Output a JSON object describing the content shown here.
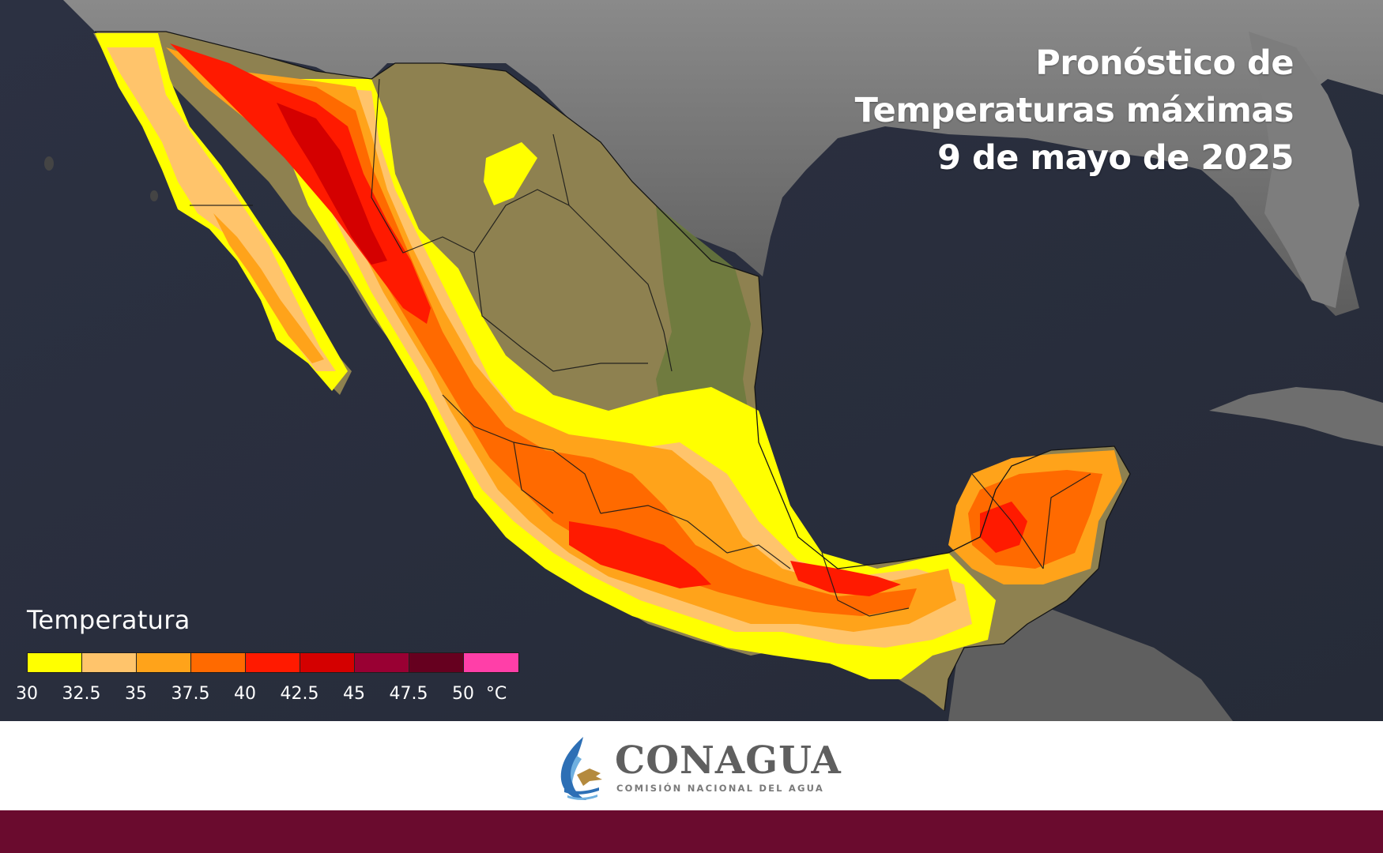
{
  "title": {
    "line1": "Pronóstico de",
    "line2": "Temperaturas máximas",
    "line3": "9 de mayo de 2025"
  },
  "legend": {
    "title": "Temperatura",
    "colors": [
      "#ffff00",
      "#ffc46b",
      "#ffa31a",
      "#ff6a00",
      "#ff1a00",
      "#d40000",
      "#990033",
      "#66001f",
      "#ff3fa8"
    ],
    "ticks": [
      "30",
      "32.5",
      "35",
      "37.5",
      "40",
      "42.5",
      "45",
      "47.5",
      "50"
    ],
    "unit": "°C"
  },
  "map": {
    "ocean_color": "#2b3140",
    "land_outside_color": "#6e6e6e",
    "land_mexico_color": "#8e8150",
    "vegetation_color": "#6b7a3c"
  },
  "footer": {
    "logo_name": "CONAGUA",
    "logo_sub": "COMISIÓN NACIONAL DEL AGUA",
    "bar_color": "#6a0b2e"
  }
}
